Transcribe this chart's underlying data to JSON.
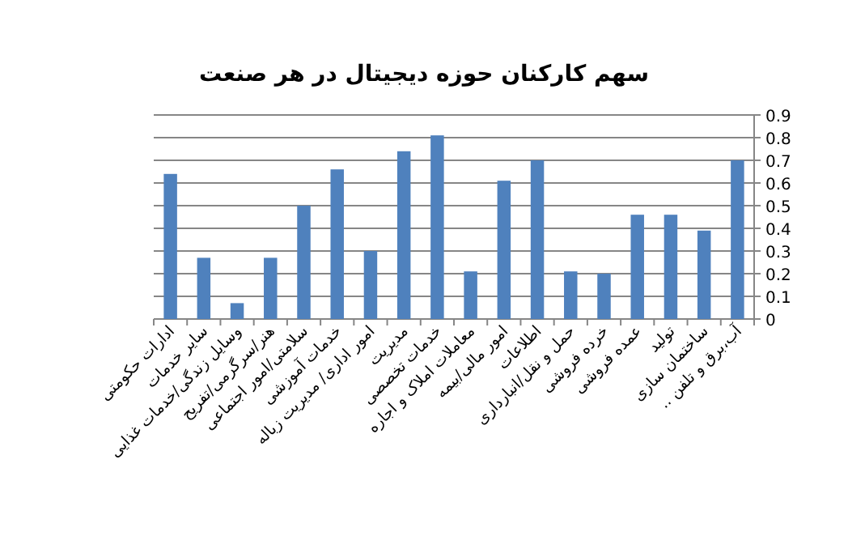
{
  "chart_data": {
    "type": "bar",
    "title": "سهم کارکنان حوزه دیجیتال در هر صنعت",
    "categories": [
      "ادارات حکومتی",
      "سایر خدمات",
      "وسایل زندگی/خدمات غذایی",
      "هنر/سرگرمی/تفریح",
      "سلامتی/امور اجتماعی",
      "خدمات آموزشی",
      "امور اداری/ مدیریت زباله",
      "مدیریت",
      "خدمات تخصصی",
      "معاملات املاک و اجاره",
      "امور مالی/بیمه",
      "اطلاعات",
      "حمل و نقل/انبارداری",
      "خرده فروشی",
      "عمده فروشی",
      "تولید",
      "ساختمان سازی",
      "آب،برق و تلفن .."
    ],
    "values": [
      0.64,
      0.27,
      0.07,
      0.27,
      0.5,
      0.66,
      0.3,
      0.74,
      0.81,
      0.21,
      0.61,
      0.7,
      0.21,
      0.2,
      0.46,
      0.46,
      0.39,
      0.7
    ],
    "color": "#4f81bd",
    "ylim": [
      0,
      0.9
    ],
    "yticks": [
      0,
      0.1,
      0.2,
      0.3,
      0.4,
      0.5,
      0.6,
      0.7,
      0.8,
      0.9
    ],
    "grid": "y"
  }
}
